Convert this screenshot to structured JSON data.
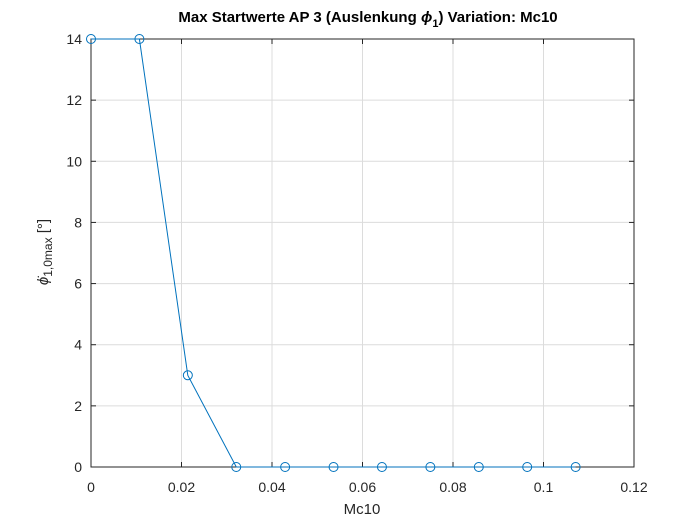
{
  "chart_data": {
    "type": "line",
    "title": {
      "prefix": "Max Startwerte AP 3 (Auslenkung ",
      "symbol": "ϕ",
      "symbol_sub": "1",
      "suffix": ")  Variation: Mc10"
    },
    "xlabel": "Mc10",
    "ylabel": {
      "symbol": "ϕ̇",
      "sub": "1,0max",
      "unit": " [°]"
    },
    "xlim": [
      0,
      0.12
    ],
    "ylim": [
      0,
      14
    ],
    "xticks": [
      0,
      0.02,
      0.04,
      0.06,
      0.08,
      0.1,
      0.12
    ],
    "xtick_labels": [
      "0",
      "0.02",
      "0.04",
      "0.06",
      "0.08",
      "0.1",
      "0.12"
    ],
    "yticks": [
      0,
      2,
      4,
      6,
      8,
      10,
      12,
      14
    ],
    "ytick_labels": [
      "0",
      "2",
      "4",
      "6",
      "8",
      "10",
      "12",
      "14"
    ],
    "grid": true,
    "marker": "circle",
    "color": "#0072BD",
    "series": [
      {
        "x": [
          0,
          0.0107,
          0.0214,
          0.0321,
          0.0429,
          0.0536,
          0.0643,
          0.075,
          0.0857,
          0.0964,
          0.1071
        ],
        "y": [
          14,
          14,
          3,
          0,
          0,
          0,
          0,
          0,
          0,
          0,
          0
        ]
      }
    ]
  }
}
